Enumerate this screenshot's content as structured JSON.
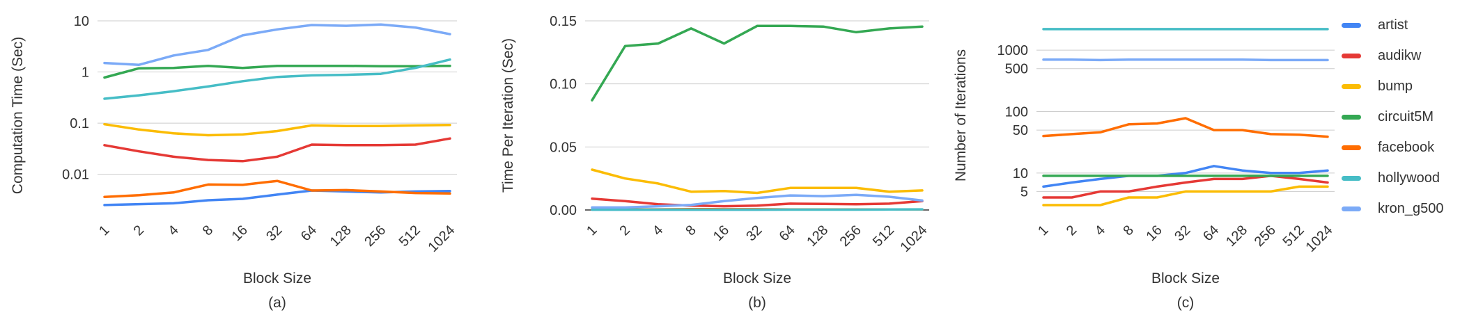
{
  "legend": [
    {
      "name": "artist",
      "color": "#4285f4"
    },
    {
      "name": "audikw",
      "color": "#e53935"
    },
    {
      "name": "bump",
      "color": "#fbbc04"
    },
    {
      "name": "circuit5M",
      "color": "#34a853"
    },
    {
      "name": "facebook",
      "color": "#ff6d01"
    },
    {
      "name": "hollywood",
      "color": "#46bdc6"
    },
    {
      "name": "kron_g500",
      "color": "#7baaf7"
    }
  ],
  "chart_data": [
    {
      "type": "line",
      "caption": "(a)",
      "xlabel": "Block Size",
      "ylabel": "Computation Time (Sec)",
      "yscale": "log",
      "ylim": [
        0.002,
        10
      ],
      "yticks": [
        0.01,
        0.1,
        1,
        10
      ],
      "ytick_labels": [
        "0.01",
        "0.1",
        "1",
        "10"
      ],
      "categories": [
        "1",
        "2",
        "4",
        "8",
        "16",
        "32",
        "64",
        "128",
        "256",
        "512",
        "1024"
      ],
      "series": [
        {
          "name": "artist",
          "values": [
            0.0025,
            0.0026,
            0.0027,
            0.0031,
            0.0033,
            0.004,
            0.0048,
            0.0046,
            0.0044,
            0.0046,
            0.0047
          ]
        },
        {
          "name": "audikw",
          "values": [
            0.037,
            0.028,
            0.022,
            0.019,
            0.018,
            0.022,
            0.038,
            0.037,
            0.037,
            0.038,
            0.05
          ]
        },
        {
          "name": "bump",
          "values": [
            0.095,
            0.075,
            0.063,
            0.058,
            0.06,
            0.07,
            0.09,
            0.088,
            0.088,
            0.09,
            0.092
          ]
        },
        {
          "name": "circuit5M",
          "values": [
            0.78,
            1.18,
            1.2,
            1.32,
            1.2,
            1.32,
            1.32,
            1.32,
            1.3,
            1.3,
            1.32
          ]
        },
        {
          "name": "facebook",
          "values": [
            0.0036,
            0.0039,
            0.0044,
            0.0063,
            0.0062,
            0.0074,
            0.0048,
            0.0049,
            0.0046,
            0.0043,
            0.0042
          ]
        },
        {
          "name": "hollywood",
          "values": [
            0.3,
            0.35,
            0.42,
            0.52,
            0.66,
            0.8,
            0.86,
            0.88,
            0.92,
            1.2,
            1.75
          ]
        },
        {
          "name": "kron_g500",
          "values": [
            1.5,
            1.38,
            2.1,
            2.7,
            5.2,
            6.8,
            8.3,
            8.0,
            8.5,
            7.4,
            5.5
          ]
        }
      ]
    },
    {
      "type": "line",
      "caption": "(b)",
      "xlabel": "Block Size",
      "ylabel": "Time Per Iteration (Sec)",
      "yscale": "linear",
      "ylim": [
        0,
        0.15
      ],
      "yticks": [
        0,
        0.05,
        0.1,
        0.15
      ],
      "ytick_labels": [
        "0.00",
        "0.05",
        "0.10",
        "0.15"
      ],
      "categories": [
        "1",
        "2",
        "4",
        "8",
        "16",
        "32",
        "64",
        "128",
        "256",
        "512",
        "1024"
      ],
      "series": [
        {
          "name": "artist",
          "values": [
            0.0003,
            0.0003,
            0.0003,
            0.0003,
            0.0003,
            0.0003,
            0.0004,
            0.0004,
            0.0004,
            0.0004,
            0.0004
          ]
        },
        {
          "name": "audikw",
          "values": [
            0.009,
            0.007,
            0.0045,
            0.0035,
            0.003,
            0.0035,
            0.005,
            0.0048,
            0.0045,
            0.005,
            0.007
          ]
        },
        {
          "name": "bump",
          "values": [
            0.032,
            0.025,
            0.021,
            0.0145,
            0.015,
            0.0135,
            0.0175,
            0.0175,
            0.0175,
            0.0145,
            0.0155
          ]
        },
        {
          "name": "circuit5M",
          "values": [
            0.087,
            0.13,
            0.132,
            0.144,
            0.132,
            0.146,
            0.146,
            0.1455,
            0.141,
            0.144,
            0.1455
          ]
        },
        {
          "name": "facebook",
          "values": [
            0.0004,
            0.0004,
            0.0005,
            0.0007,
            0.0006,
            0.0006,
            0.0004,
            0.0004,
            0.0004,
            0.0004,
            0.0004
          ]
        },
        {
          "name": "hollywood",
          "values": [
            0.0003,
            0.0003,
            0.0003,
            0.0003,
            0.0003,
            0.0003,
            0.0003,
            0.0003,
            0.0003,
            0.0004,
            0.0005
          ]
        },
        {
          "name": "kron_g500",
          "values": [
            0.002,
            0.002,
            0.003,
            0.004,
            0.007,
            0.0095,
            0.0115,
            0.011,
            0.012,
            0.0105,
            0.0075
          ]
        }
      ]
    },
    {
      "type": "line",
      "caption": "(c)",
      "xlabel": "Block Size",
      "ylabel": "Number of Iterations",
      "yscale": "log",
      "ylim": [
        2.5,
        3000
      ],
      "yticks": [
        5,
        10,
        50,
        100,
        500,
        1000
      ],
      "ytick_labels": [
        "5",
        "10",
        "50",
        "100",
        "500",
        "1000"
      ],
      "categories": [
        "1",
        "2",
        "4",
        "8",
        "16",
        "32",
        "64",
        "128",
        "256",
        "512",
        "1024"
      ],
      "series": [
        {
          "name": "artist",
          "values": [
            6,
            7,
            8,
            9,
            9,
            10,
            13,
            11,
            10,
            10,
            11
          ]
        },
        {
          "name": "audikw",
          "values": [
            4,
            4,
            5,
            5,
            6,
            7,
            8,
            8,
            9,
            8,
            7
          ]
        },
        {
          "name": "bump",
          "values": [
            3,
            3,
            3,
            4,
            4,
            5,
            5,
            5,
            5,
            6,
            6
          ]
        },
        {
          "name": "circuit5M",
          "values": [
            9,
            9,
            9,
            9,
            9,
            9,
            9,
            9,
            9,
            9,
            9
          ]
        },
        {
          "name": "facebook",
          "values": [
            40,
            43,
            46,
            62,
            64,
            78,
            50,
            50,
            43,
            42,
            39
          ]
        },
        {
          "name": "hollywood",
          "values": [
            2200,
            2200,
            2200,
            2200,
            2200,
            2200,
            2200,
            2200,
            2200,
            2200,
            2200
          ]
        },
        {
          "name": "kron_g500",
          "values": [
            700,
            700,
            690,
            700,
            700,
            700,
            700,
            700,
            690,
            690,
            690
          ]
        }
      ]
    }
  ]
}
